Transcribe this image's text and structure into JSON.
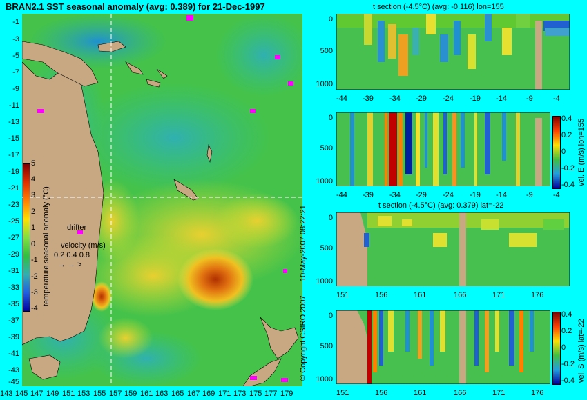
{
  "map": {
    "title": "BRAN2.1 SST seasonal anomaly (avg: 0.389) for 21-Dec-1997",
    "lat_labels": [
      "-1",
      "-3",
      "-5",
      "-7",
      "-9",
      "-11",
      "-13",
      "-15",
      "-17",
      "-19",
      "-21",
      "-23",
      "-25",
      "-27",
      "-29",
      "-31",
      "-33",
      "-35",
      "-37",
      "-39",
      "-41",
      "-43",
      "-45"
    ],
    "lon_labels": [
      "143",
      "145",
      "147",
      "149",
      "151",
      "153",
      "155",
      "157",
      "159",
      "161",
      "163",
      "165",
      "167",
      "169",
      "171",
      "173",
      "175",
      "177",
      "179"
    ],
    "colorbar_label": "temperature seasonal anomaly (°C)",
    "colorbar_ticks": [
      "5",
      "4",
      "3",
      "2",
      "1",
      "0",
      "-1",
      "-2",
      "-3",
      "-4"
    ],
    "drifter_label": "drifter",
    "velocity_label": "velocity (m/s)",
    "velocity_scale": "0.2 0.4 0.8"
  },
  "side_text": {
    "date_stamp": "10-May-2007 08:22:21",
    "copyright": "© Copyright CSIRO 2007"
  },
  "panels": {
    "p1": {
      "title": "t section (-4.5°C) (avg: -0.116) lon=155",
      "x_ticks": [
        "-44",
        "-39",
        "-34",
        "-29",
        "-24",
        "-19",
        "-14",
        "-9",
        "-4"
      ],
      "y_ticks": [
        "0",
        "500",
        "1000"
      ]
    },
    "p2": {
      "x_ticks": [
        "-44",
        "-39",
        "-34",
        "-29",
        "-24",
        "-19",
        "-14",
        "-9",
        "-4"
      ],
      "y_ticks": [
        "0",
        "500",
        "1000"
      ],
      "cbar_label": "vel. E (m/s) lon=155",
      "cbar_ticks": [
        "0.4",
        "0.2",
        "0",
        "-0.2",
        "-0.4"
      ]
    },
    "p3": {
      "title": "t section (-4.5°C) (avg: 0.379) lat=-22",
      "x_ticks": [
        "151",
        "156",
        "161",
        "166",
        "171",
        "176"
      ],
      "y_ticks": [
        "0",
        "500",
        "1000"
      ]
    },
    "p4": {
      "x_ticks": [
        "151",
        "156",
        "161",
        "166",
        "171",
        "176"
      ],
      "y_ticks": [
        "0",
        "500",
        "1000"
      ],
      "cbar_label": "vel. S (m/s) lat=-22",
      "cbar_ticks": [
        "0.4",
        "0.2",
        "0",
        "-0.2",
        "-0.4"
      ]
    }
  },
  "colors": {
    "background": "#00ffff",
    "land": "#c8a882",
    "ocean_base": "#4fc84f",
    "hot": "#b02000",
    "cold": "#000080"
  }
}
